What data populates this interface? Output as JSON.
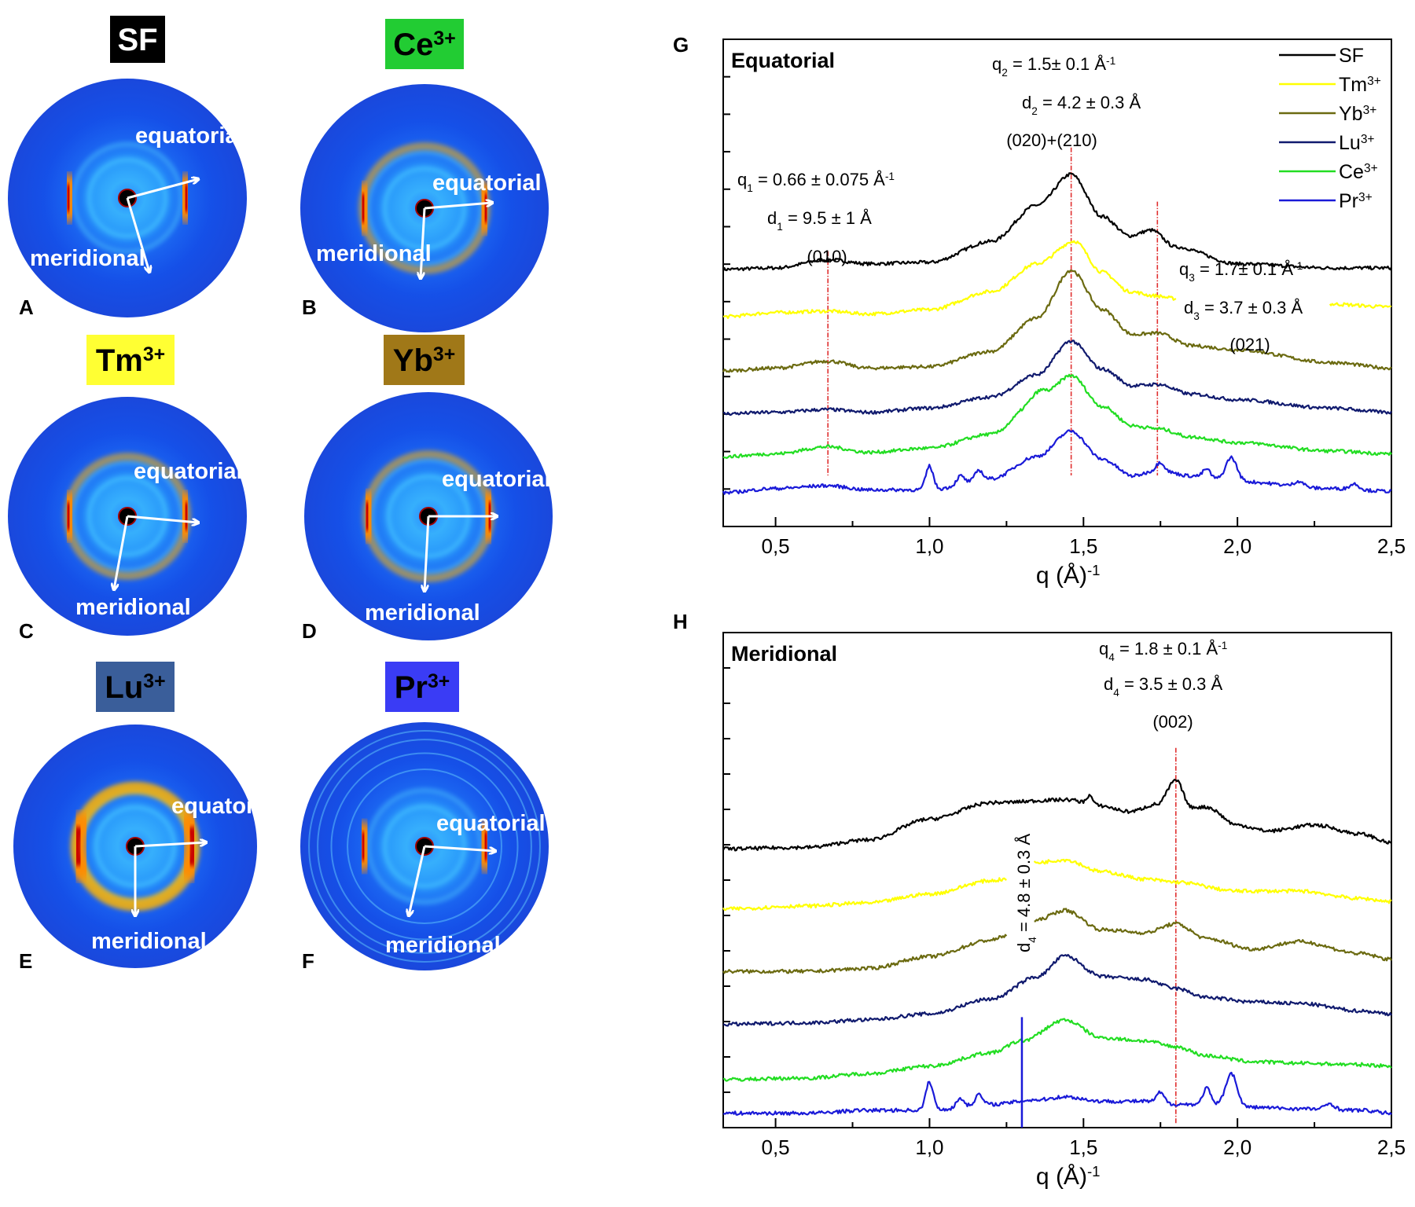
{
  "patterns": [
    {
      "panel": "A",
      "ion": "SF",
      "sup": "",
      "box_color": "#000000",
      "text_color": "#ffffff",
      "equatorial": "equatorial",
      "meridional": "meridional"
    },
    {
      "panel": "B",
      "ion": "Ce",
      "sup": "3+",
      "box_color": "#22cc33",
      "text_color": "#000000",
      "equatorial": "equatorial",
      "meridional": "meridional"
    },
    {
      "panel": "C",
      "ion": "Tm",
      "sup": "3+",
      "box_color": "#ffff33",
      "text_color": "#000000",
      "equatorial": "equatorial",
      "meridional": "meridional"
    },
    {
      "panel": "D",
      "ion": "Yb",
      "sup": "3+",
      "box_color": "#a07818",
      "text_color": "#000000",
      "equatorial": "equatorial",
      "meridional": "meridional"
    },
    {
      "panel": "E",
      "ion": "Lu",
      "sup": "3+",
      "box_color": "#3a5e9a",
      "text_color": "#000000",
      "equatorial": "equatoria",
      "meridional": "meridional"
    },
    {
      "panel": "F",
      "ion": "Pr",
      "sup": "3+",
      "box_color": "#3a3cf5",
      "text_color": "#000000",
      "equatorial": "equatorial",
      "meridional": "meridional"
    }
  ],
  "colors": {
    "SF": "#000000",
    "Tm3+": "#ffff00",
    "Yb3+": "#6b6a10",
    "Lu3+": "#101a6e",
    "Ce3+": "#22dd22",
    "Pr3+": "#1a1ad8",
    "ref_line": "#e03030"
  },
  "chart_data": [
    {
      "panel": "G",
      "type": "line",
      "title": "Equatorial",
      "xlabel": "q (Å)",
      "xlabel_sup": "-1",
      "xlim": [
        0.33,
        2.5
      ],
      "xticks": [
        "0,5",
        "1,0",
        "1,5",
        "2,0",
        "2,5"
      ],
      "xtick_values": [
        0.5,
        1.0,
        1.5,
        2.0,
        2.5
      ],
      "y_ticks_minor": 12,
      "legend": [
        "SF",
        "Tm",
        "Yb",
        "Lu",
        "Ce",
        "Pr"
      ],
      "legend_sups": [
        "",
        "3+",
        "3+",
        "3+",
        "3+",
        "3+"
      ],
      "ref_lines": [
        0.67,
        1.46,
        1.74
      ],
      "annotations": [
        {
          "id": "q1",
          "q_label": "q",
          "q_sub": "1",
          "q_value": " = 0.66 ± 0.075 Å",
          "q_sup": "-1",
          "d_label": "d",
          "d_sub": "1",
          "d_value": " = 9.5 ± 1 Å",
          "hkl": "(010)"
        },
        {
          "id": "q2",
          "q_label": "q",
          "q_sub": "2",
          "q_value": " = 1.5± 0.1 Å",
          "q_sup": "-1",
          "d_label": "d",
          "d_sub": "2",
          "d_value": " = 4.2 ± 0.3 Å",
          "hkl": "(020)+(210)"
        },
        {
          "id": "q3",
          "q_label": "q",
          "q_sub": "3",
          "q_value": " = 1.7± 0.1 Å",
          "q_sup": "-1",
          "d_label": "d",
          "d_sub": "3",
          "d_value": " = 3.7 ± 0.3 Å",
          "hkl": "(021)"
        }
      ],
      "series": [
        {
          "name": "SF",
          "offset": 5.7,
          "baseline": [
            [
              0.33,
              0
            ],
            [
              0.5,
              0.05
            ],
            [
              0.67,
              0.35
            ],
            [
              0.8,
              0.2
            ],
            [
              1.0,
              0.25
            ],
            [
              1.2,
              1.0
            ],
            [
              1.35,
              2.3
            ],
            [
              1.46,
              3.4
            ],
            [
              1.56,
              1.9
            ],
            [
              1.65,
              1.2
            ],
            [
              1.72,
              1.4
            ],
            [
              1.8,
              0.8
            ],
            [
              2.0,
              0.2
            ],
            [
              2.3,
              0.05
            ],
            [
              2.5,
              0.05
            ]
          ],
          "peaks": []
        },
        {
          "name": "Tm3+",
          "offset": 4.65,
          "baseline": [
            [
              0.33,
              0
            ],
            [
              0.5,
              0.15
            ],
            [
              0.67,
              0.2
            ],
            [
              0.8,
              0.1
            ],
            [
              1.0,
              0.25
            ],
            [
              1.2,
              0.9
            ],
            [
              1.35,
              1.9
            ],
            [
              1.47,
              2.7
            ],
            [
              1.56,
              1.6
            ],
            [
              1.65,
              0.9
            ],
            [
              1.73,
              0.75
            ],
            [
              1.8,
              0.65
            ]
          ],
          "tail": [
            [
              2.3,
              0.45
            ],
            [
              2.5,
              0.35
            ]
          ],
          "peaks": []
        },
        {
          "name": "Yb3+",
          "offset": 3.45,
          "baseline": [
            [
              0.33,
              0
            ],
            [
              0.5,
              0.1
            ],
            [
              0.67,
              0.35
            ],
            [
              0.8,
              0.1
            ],
            [
              1.0,
              0.15
            ],
            [
              1.2,
              0.7
            ],
            [
              1.35,
              1.9
            ],
            [
              1.46,
              3.6
            ],
            [
              1.56,
              2.2
            ],
            [
              1.66,
              1.3
            ],
            [
              1.74,
              1.35
            ],
            [
              1.85,
              0.9
            ],
            [
              2.0,
              0.75
            ],
            [
              2.3,
              0.3
            ],
            [
              2.5,
              0.1
            ]
          ],
          "peaks": []
        },
        {
          "name": "Lu3+",
          "offset": 2.5,
          "baseline": [
            [
              0.33,
              0
            ],
            [
              0.5,
              0.05
            ],
            [
              0.67,
              0.15
            ],
            [
              0.8,
              0.05
            ],
            [
              1.0,
              0.2
            ],
            [
              1.2,
              0.6
            ],
            [
              1.35,
              1.4
            ],
            [
              1.46,
              2.6
            ],
            [
              1.56,
              1.6
            ],
            [
              1.66,
              1.0
            ],
            [
              1.74,
              1.05
            ],
            [
              1.85,
              0.7
            ],
            [
              2.0,
              0.5
            ],
            [
              2.3,
              0.2
            ],
            [
              2.5,
              0.05
            ]
          ],
          "peaks": []
        },
        {
          "name": "Ce3+",
          "offset": 1.55,
          "baseline": [
            [
              0.33,
              0
            ],
            [
              0.5,
              0.1
            ],
            [
              0.67,
              0.35
            ],
            [
              0.8,
              0.15
            ],
            [
              1.0,
              0.3
            ],
            [
              1.2,
              0.8
            ],
            [
              1.35,
              2.0
            ],
            [
              1.46,
              2.9
            ],
            [
              1.56,
              1.8
            ],
            [
              1.66,
              1.1
            ],
            [
              1.74,
              1.0
            ],
            [
              1.85,
              0.7
            ],
            [
              2.0,
              0.5
            ],
            [
              2.3,
              0.2
            ],
            [
              2.5,
              0.1
            ]
          ],
          "peaks": [
            [
              1.36,
              0.35,
              0.02
            ]
          ]
        },
        {
          "name": "Pr3+",
          "offset": 0.75,
          "baseline": [
            [
              0.33,
              0
            ],
            [
              0.5,
              0.15
            ],
            [
              0.67,
              0.25
            ],
            [
              0.8,
              0.1
            ],
            [
              1.0,
              0.1
            ],
            [
              1.2,
              0.5
            ],
            [
              1.35,
              1.3
            ],
            [
              1.46,
              2.2
            ],
            [
              1.56,
              1.2
            ],
            [
              1.66,
              0.6
            ],
            [
              1.74,
              0.8
            ],
            [
              1.85,
              0.6
            ],
            [
              2.0,
              0.4
            ],
            [
              2.3,
              0.15
            ],
            [
              2.5,
              0.05
            ]
          ],
          "peaks": [
            [
              1.0,
              0.85,
              0.012
            ],
            [
              1.1,
              0.3,
              0.012
            ],
            [
              1.16,
              0.35,
              0.012
            ],
            [
              1.75,
              0.3,
              0.012
            ],
            [
              1.9,
              0.3,
              0.012
            ],
            [
              1.98,
              0.85,
              0.018
            ],
            [
              2.2,
              0.2,
              0.015
            ],
            [
              2.38,
              0.2,
              0.015
            ]
          ]
        }
      ]
    },
    {
      "panel": "H",
      "type": "line",
      "title": "Meridional",
      "xlabel": "q (Å)",
      "xlabel_sup": "-1",
      "xlim": [
        0.33,
        2.5
      ],
      "xticks": [
        "0,5",
        "1,0",
        "1,5",
        "2,0",
        "2,5"
      ],
      "xtick_values": [
        0.5,
        1.0,
        1.5,
        2.0,
        2.5
      ],
      "y_ticks_minor": 13,
      "ref_lines": [
        1.8
      ],
      "blue_line": 1.3,
      "annotations": [
        {
          "id": "q4",
          "q_label": "q",
          "q_sub": "4",
          "q_value": " = 1.8 ± 0.1 Å",
          "q_sup": "-1",
          "d_label": "d",
          "d_sub": "4",
          "d_value": " = 3.5 ± 0.3 Å",
          "hkl": "(002)"
        },
        {
          "id": "d4v",
          "text": "d",
          "sub": "4",
          "value": " = 4.8 ± 0.3 Å"
        }
      ],
      "series": [
        {
          "name": "SF",
          "offset": 5.8,
          "baseline": [
            [
              0.33,
              0
            ],
            [
              0.6,
              0.05
            ],
            [
              0.8,
              0.3
            ],
            [
              1.0,
              1.0
            ],
            [
              1.2,
              1.55
            ],
            [
              1.45,
              1.65
            ],
            [
              1.55,
              1.45
            ],
            [
              1.65,
              1.25
            ],
            [
              1.74,
              1.5
            ],
            [
              1.8,
              2.3
            ],
            [
              1.85,
              1.4
            ],
            [
              1.9,
              1.4
            ],
            [
              2.0,
              0.8
            ],
            [
              2.1,
              0.6
            ],
            [
              2.25,
              0.8
            ],
            [
              2.4,
              0.5
            ],
            [
              2.5,
              0.2
            ]
          ],
          "peaks": [
            [
              1.52,
              0.3,
              0.01
            ]
          ]
        },
        {
          "name": "Tm3+",
          "offset": 4.55,
          "baseline": [
            [
              0.33,
              0
            ],
            [
              0.6,
              0.1
            ],
            [
              0.8,
              0.2
            ],
            [
              1.0,
              0.5
            ],
            [
              1.2,
              0.95
            ],
            [
              1.25,
              1.0
            ]
          ],
          "tail_start": 1.34,
          "tail": [
            [
              1.34,
              1.55
            ],
            [
              1.44,
              1.65
            ],
            [
              1.56,
              1.25
            ],
            [
              1.7,
              1.0
            ],
            [
              1.8,
              0.9
            ],
            [
              2.0,
              0.6
            ],
            [
              2.2,
              0.6
            ],
            [
              2.4,
              0.35
            ],
            [
              2.5,
              0.25
            ]
          ],
          "peaks": []
        },
        {
          "name": "Yb3+",
          "offset": 3.25,
          "baseline": [
            [
              0.33,
              0
            ],
            [
              0.6,
              0.0
            ],
            [
              0.8,
              0.1
            ],
            [
              1.0,
              0.5
            ],
            [
              1.2,
              1.05
            ],
            [
              1.25,
              1.2
            ]
          ],
          "tail_start": 1.34,
          "tail": [
            [
              1.34,
              1.7
            ],
            [
              1.44,
              2.05
            ],
            [
              1.56,
              1.4
            ],
            [
              1.7,
              1.3
            ],
            [
              1.8,
              1.6
            ],
            [
              1.9,
              1.1
            ],
            [
              2.05,
              0.75
            ],
            [
              2.2,
              1.0
            ],
            [
              2.4,
              0.6
            ],
            [
              2.5,
              0.4
            ]
          ],
          "peaks": []
        },
        {
          "name": "Lu3+",
          "offset": 2.15,
          "baseline": [
            [
              0.33,
              0
            ],
            [
              0.6,
              0.05
            ],
            [
              0.8,
              0.15
            ],
            [
              1.0,
              0.35
            ],
            [
              1.2,
              0.85
            ],
            [
              1.35,
              1.6
            ],
            [
              1.44,
              2.3
            ],
            [
              1.56,
              1.6
            ],
            [
              1.7,
              1.5
            ],
            [
              1.8,
              1.2
            ],
            [
              1.9,
              0.9
            ],
            [
              2.05,
              0.75
            ],
            [
              2.2,
              0.7
            ],
            [
              2.4,
              0.45
            ],
            [
              2.5,
              0.35
            ]
          ],
          "peaks": []
        },
        {
          "name": "Ce3+",
          "offset": 1.0,
          "baseline": [
            [
              0.33,
              0
            ],
            [
              0.6,
              0.05
            ],
            [
              0.8,
              0.2
            ],
            [
              1.0,
              0.45
            ],
            [
              1.2,
              0.9
            ],
            [
              1.3,
              1.3
            ],
            [
              1.44,
              2.0
            ],
            [
              1.56,
              1.4
            ],
            [
              1.7,
              1.3
            ],
            [
              1.8,
              1.1
            ],
            [
              1.9,
              0.8
            ],
            [
              2.05,
              0.6
            ],
            [
              2.2,
              0.55
            ],
            [
              2.4,
              0.5
            ],
            [
              2.5,
              0.45
            ]
          ],
          "peaks": []
        },
        {
          "name": "Pr3+",
          "offset": 0.3,
          "baseline": [
            [
              0.33,
              0
            ],
            [
              0.6,
              0.0
            ],
            [
              0.8,
              0.1
            ],
            [
              1.0,
              0.1
            ],
            [
              1.2,
              0.3
            ],
            [
              1.35,
              0.45
            ],
            [
              1.44,
              0.55
            ],
            [
              1.56,
              0.4
            ],
            [
              1.7,
              0.4
            ],
            [
              1.8,
              0.3
            ],
            [
              1.9,
              0.3
            ],
            [
              2.05,
              0.2
            ],
            [
              2.2,
              0.15
            ],
            [
              2.4,
              0.1
            ],
            [
              2.5,
              0.0
            ]
          ],
          "peaks": [
            [
              1.0,
              0.95,
              0.012
            ],
            [
              1.1,
              0.3,
              0.012
            ],
            [
              1.16,
              0.35,
              0.012
            ],
            [
              1.75,
              0.35,
              0.012
            ],
            [
              1.9,
              0.55,
              0.012
            ],
            [
              1.98,
              1.1,
              0.018
            ],
            [
              2.3,
              0.2,
              0.015
            ]
          ]
        }
      ]
    }
  ]
}
